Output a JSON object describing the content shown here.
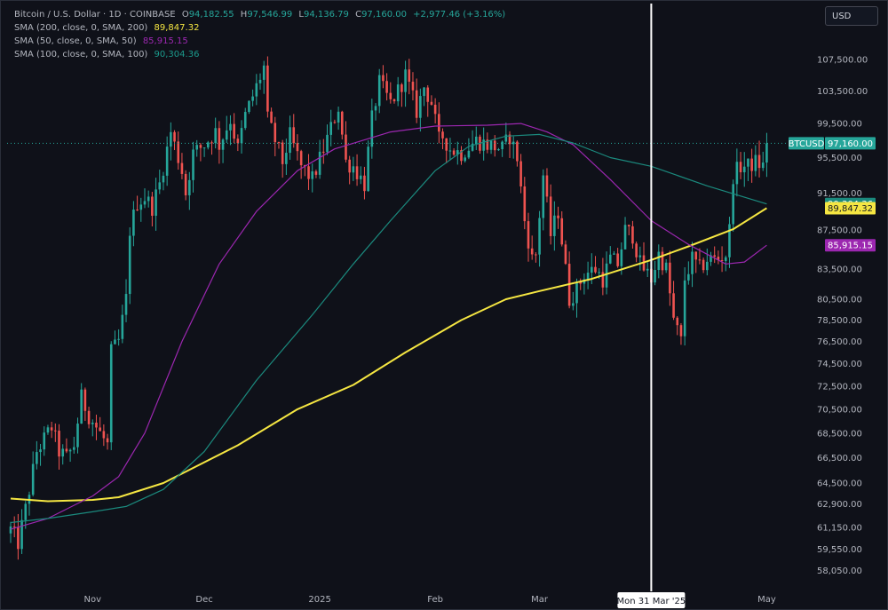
{
  "legend": {
    "symbol": "Bitcoin / U.S. Dollar · 1D · COINBASE",
    "ohlc": {
      "o_label": "O",
      "o": "94,182.55",
      "h_label": "H",
      "h": "97,546.99",
      "l_label": "L",
      "l": "94,136.79",
      "c_label": "C",
      "c": "97,160.00",
      "change": "+2,977.46 (+3.16%)"
    },
    "sma200": {
      "label": "SMA (200, close, 0, SMA, 200)",
      "value": "89,847.32"
    },
    "sma50": {
      "label": "SMA (50, close, 0, SMA, 50)",
      "value": "85,915.15"
    },
    "sma100": {
      "label": "SMA (100, close, 0, SMA, 100)",
      "value": "90,304.36"
    }
  },
  "currency_button": "USD",
  "crosshair_label": "Mon 31 Mar '25",
  "price_labels": {
    "symbol_tag": "BTCUSD",
    "last_price": "97,160.00",
    "sma100": "90,304.36",
    "sma200": "89,847.32",
    "sma50": "85,915.15"
  },
  "colors": {
    "background": "#0f1119",
    "up": "#26a69a",
    "down": "#ef5350",
    "sma200": "#f5e642",
    "sma50": "#9c27b0",
    "sma100": "#1b8a7e",
    "crosshair": "#ffffff",
    "axis_text": "#b2b5be"
  },
  "chart_data": {
    "type": "candlestick",
    "title": "Bitcoin / U.S. Dollar · 1D · COINBASE",
    "y_scale": "log",
    "ylim": [
      56600,
      114500
    ],
    "y_ticks": [
      "107,500.00",
      "103,500.00",
      "99,500.00",
      "95,500.00",
      "91,500.00",
      "87,500.00",
      "83,500.00",
      "80,500.00",
      "78,500.00",
      "76,500.00",
      "74,500.00",
      "72,500.00",
      "70,500.00",
      "68,500.00",
      "66,500.00",
      "64,500.00",
      "62,900.00",
      "61,150.00",
      "59,550.00",
      "58,050.00"
    ],
    "x_range": [
      "2024-10-10",
      "2025-05-04"
    ],
    "x_ticks": [
      {
        "label": "Nov",
        "date": "2024-11-01"
      },
      {
        "label": "Dec",
        "date": "2024-12-01"
      },
      {
        "label": "2025",
        "date": "2025-01-01"
      },
      {
        "label": "Feb",
        "date": "2025-02-01"
      },
      {
        "label": "Mar",
        "date": "2025-03-01"
      },
      {
        "label": "May",
        "date": "2025-05-01"
      }
    ],
    "crosshair_date": "2025-03-31",
    "last_close": 97160.0,
    "anchors": [
      [
        "2024-10-10",
        61000
      ],
      [
        "2024-10-12",
        60000
      ],
      [
        "2024-10-14",
        62500
      ],
      [
        "2024-10-17",
        67000
      ],
      [
        "2024-10-21",
        69000
      ],
      [
        "2024-10-23",
        67000
      ],
      [
        "2024-10-25",
        66500
      ],
      [
        "2024-10-27",
        67500
      ],
      [
        "2024-10-29",
        71500
      ],
      [
        "2024-10-31",
        70000
      ],
      [
        "2024-11-03",
        68500
      ],
      [
        "2024-11-05",
        67500
      ],
      [
        "2024-11-06",
        75500
      ],
      [
        "2024-11-08",
        76500
      ],
      [
        "2024-11-10",
        80500
      ],
      [
        "2024-11-11",
        87500
      ],
      [
        "2024-11-13",
        90500
      ],
      [
        "2024-11-15",
        91000
      ],
      [
        "2024-11-17",
        90000
      ],
      [
        "2024-11-19",
        92500
      ],
      [
        "2024-11-22",
        98500
      ],
      [
        "2024-11-25",
        94000
      ],
      [
        "2024-11-26",
        91500
      ],
      [
        "2024-11-28",
        96000
      ],
      [
        "2024-12-01",
        97000
      ],
      [
        "2024-12-04",
        98500
      ],
      [
        "2024-12-05",
        97000
      ],
      [
        "2024-12-08",
        100000
      ],
      [
        "2024-12-10",
        96500
      ],
      [
        "2024-12-12",
        100500
      ],
      [
        "2024-12-15",
        104000
      ],
      [
        "2024-12-17",
        106500
      ],
      [
        "2024-12-18",
        100000
      ],
      [
        "2024-12-20",
        97500
      ],
      [
        "2024-12-22",
        95000
      ],
      [
        "2024-12-24",
        98000
      ],
      [
        "2024-12-27",
        94500
      ],
      [
        "2024-12-30",
        93000
      ],
      [
        "2025-01-02",
        96500
      ],
      [
        "2025-01-06",
        101500
      ],
      [
        "2025-01-08",
        95000
      ],
      [
        "2025-01-10",
        94500
      ],
      [
        "2025-01-13",
        92500
      ],
      [
        "2025-01-15",
        100000
      ],
      [
        "2025-01-17",
        104500
      ],
      [
        "2025-01-20",
        102000
      ],
      [
        "2025-01-22",
        103500
      ],
      [
        "2025-01-24",
        105500
      ],
      [
        "2025-01-27",
        101000
      ],
      [
        "2025-01-29",
        104000
      ],
      [
        "2025-01-31",
        102000
      ],
      [
        "2025-02-02",
        97500
      ],
      [
        "2025-02-03",
        98000
      ],
      [
        "2025-02-05",
        96500
      ],
      [
        "2025-02-08",
        96000
      ],
      [
        "2025-02-12",
        97500
      ],
      [
        "2025-02-15",
        97000
      ],
      [
        "2025-02-19",
        96500
      ],
      [
        "2025-02-21",
        98000
      ],
      [
        "2025-02-23",
        95500
      ],
      [
        "2025-02-25",
        88500
      ],
      [
        "2025-02-27",
        84500
      ],
      [
        "2025-02-28",
        85000
      ],
      [
        "2025-03-02",
        93500
      ],
      [
        "2025-03-04",
        87000
      ],
      [
        "2025-03-06",
        89500
      ],
      [
        "2025-03-09",
        80500
      ],
      [
        "2025-03-11",
        81500
      ],
      [
        "2025-03-13",
        83000
      ],
      [
        "2025-03-16",
        83500
      ],
      [
        "2025-03-18",
        82500
      ],
      [
        "2025-03-20",
        84500
      ],
      [
        "2025-03-22",
        84000
      ],
      [
        "2025-03-24",
        87500
      ],
      [
        "2025-03-26",
        87000
      ],
      [
        "2025-03-28",
        84000
      ],
      [
        "2025-03-31",
        82500
      ],
      [
        "2025-04-02",
        85000
      ],
      [
        "2025-04-04",
        83500
      ],
      [
        "2025-04-06",
        78500
      ],
      [
        "2025-04-08",
        76500
      ],
      [
        "2025-04-09",
        82500
      ],
      [
        "2025-04-11",
        84500
      ],
      [
        "2025-04-13",
        83500
      ],
      [
        "2025-04-15",
        84500
      ],
      [
        "2025-04-18",
        84500
      ],
      [
        "2025-04-20",
        85000
      ],
      [
        "2025-04-21",
        87500
      ],
      [
        "2025-04-22",
        93500
      ],
      [
        "2025-04-24",
        94500
      ],
      [
        "2025-04-26",
        94500
      ],
      [
        "2025-04-28",
        95000
      ],
      [
        "2025-04-30",
        94500
      ],
      [
        "2025-05-01",
        97160
      ]
    ],
    "series": [
      {
        "name": "SMA (200, close, 0, SMA, 200)",
        "last_value": 89847.32,
        "points": [
          [
            "2024-10-10",
            63300
          ],
          [
            "2024-10-20",
            63100
          ],
          [
            "2024-11-01",
            63200
          ],
          [
            "2024-11-08",
            63400
          ],
          [
            "2024-11-20",
            64500
          ],
          [
            "2024-12-10",
            67500
          ],
          [
            "2024-12-26",
            70500
          ],
          [
            "2025-01-10",
            72600
          ],
          [
            "2025-01-24",
            75500
          ],
          [
            "2025-02-08",
            78500
          ],
          [
            "2025-02-20",
            80500
          ],
          [
            "2025-03-01",
            81300
          ],
          [
            "2025-03-15",
            82500
          ],
          [
            "2025-03-31",
            84400
          ],
          [
            "2025-04-10",
            85800
          ],
          [
            "2025-04-22",
            87600
          ],
          [
            "2025-05-01",
            89847
          ]
        ]
      },
      {
        "name": "SMA (50, close, 0, SMA, 50)",
        "last_value": 85915.15,
        "points": [
          [
            "2024-10-10",
            61000
          ],
          [
            "2024-10-20",
            61800
          ],
          [
            "2024-11-01",
            63500
          ],
          [
            "2024-11-08",
            65000
          ],
          [
            "2024-11-15",
            68500
          ],
          [
            "2024-11-25",
            76500
          ],
          [
            "2024-12-05",
            84000
          ],
          [
            "2024-12-15",
            89500
          ],
          [
            "2024-12-26",
            94000
          ],
          [
            "2025-01-05",
            96500
          ],
          [
            "2025-01-20",
            98500
          ],
          [
            "2025-02-01",
            99200
          ],
          [
            "2025-02-15",
            99300
          ],
          [
            "2025-02-24",
            99500
          ],
          [
            "2025-03-03",
            98500
          ],
          [
            "2025-03-10",
            97000
          ],
          [
            "2025-03-20",
            93000
          ],
          [
            "2025-03-31",
            88500
          ],
          [
            "2025-04-10",
            86000
          ],
          [
            "2025-04-20",
            84000
          ],
          [
            "2025-04-25",
            84200
          ],
          [
            "2025-05-01",
            85915
          ]
        ]
      },
      {
        "name": "SMA (100, close, 0, SMA, 100)",
        "last_value": 90304.36,
        "points": [
          [
            "2024-10-10",
            61500
          ],
          [
            "2024-10-20",
            61800
          ],
          [
            "2024-11-01",
            62300
          ],
          [
            "2024-11-10",
            62700
          ],
          [
            "2024-11-20",
            64000
          ],
          [
            "2024-12-01",
            67000
          ],
          [
            "2024-12-15",
            73000
          ],
          [
            "2024-12-30",
            79000
          ],
          [
            "2025-01-10",
            84000
          ],
          [
            "2025-01-20",
            88500
          ],
          [
            "2025-02-01",
            94000
          ],
          [
            "2025-02-10",
            96800
          ],
          [
            "2025-02-20",
            98000
          ],
          [
            "2025-03-01",
            98200
          ],
          [
            "2025-03-10",
            97200
          ],
          [
            "2025-03-20",
            95500
          ],
          [
            "2025-03-31",
            94500
          ],
          [
            "2025-04-15",
            92300
          ],
          [
            "2025-05-01",
            90304
          ]
        ]
      }
    ]
  }
}
